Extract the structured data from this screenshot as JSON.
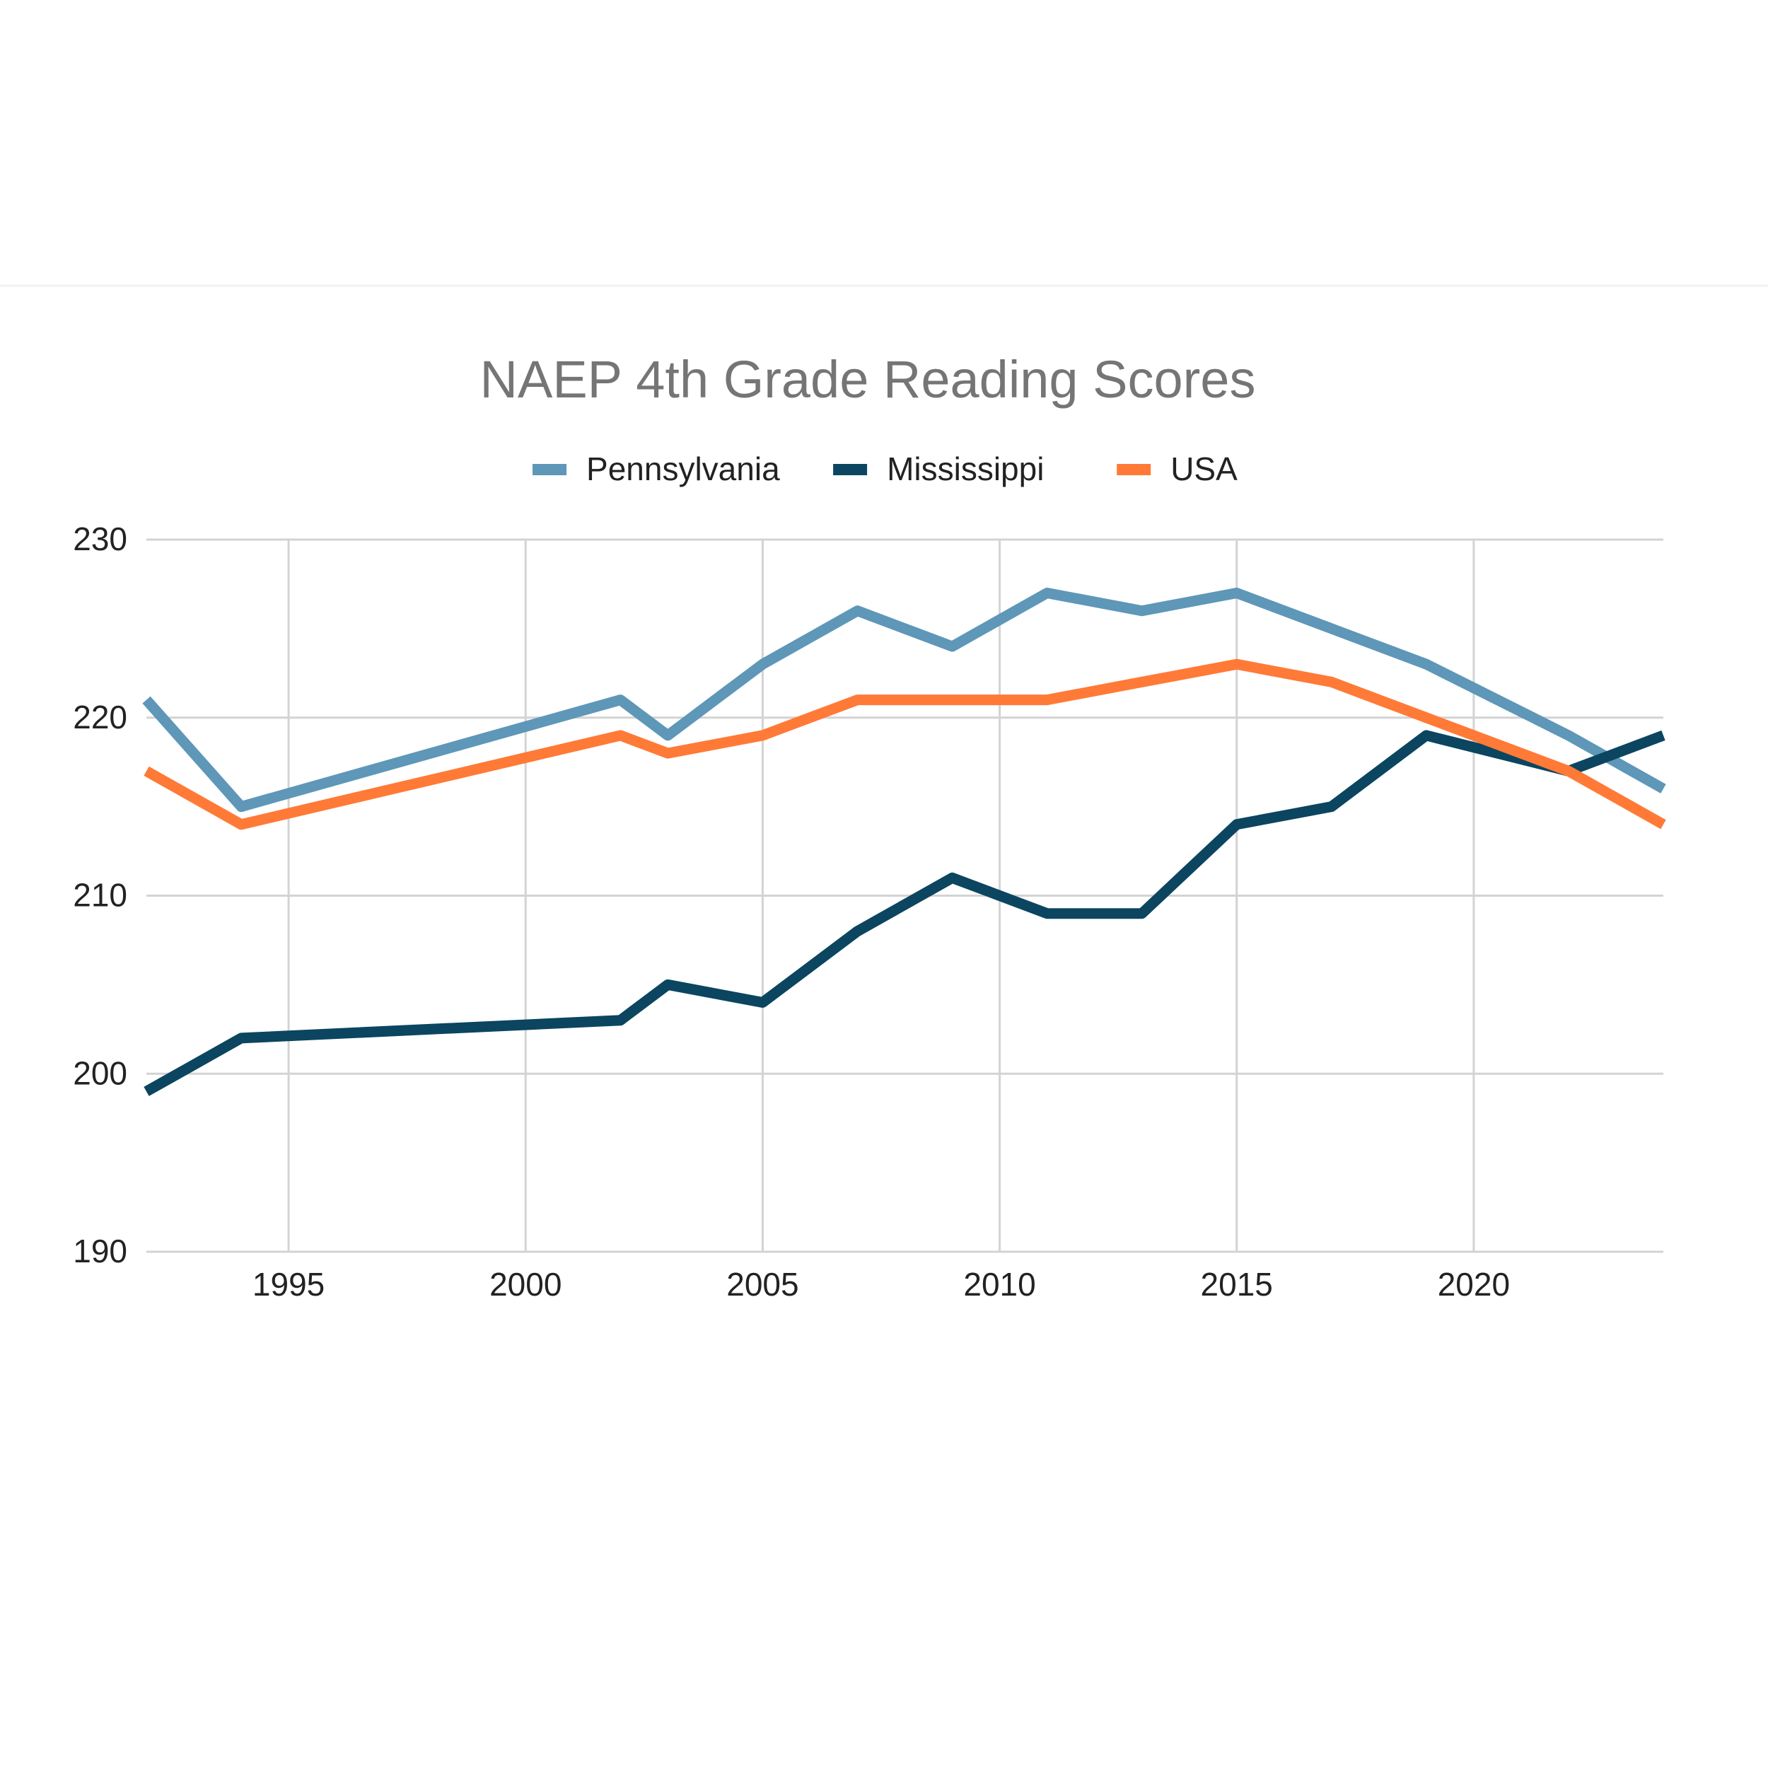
{
  "chart_data": {
    "type": "line",
    "title": "NAEP 4th Grade Reading Scores",
    "xlabel": "",
    "ylabel": "",
    "xlim": [
      1992,
      2024
    ],
    "ylim": [
      190,
      230
    ],
    "x_ticks": [
      1995,
      2000,
      2005,
      2010,
      2015,
      2020
    ],
    "y_ticks": [
      190,
      200,
      210,
      220,
      230
    ],
    "x_tick_labels": [
      "1995",
      "2000",
      "2005",
      "2010",
      "2015",
      "2020"
    ],
    "y_tick_labels": [
      "190",
      "200",
      "210",
      "220",
      "230"
    ],
    "grid": true,
    "legend_position": "top-center",
    "x": [
      1992,
      1994,
      2002,
      2003,
      2005,
      2007,
      2009,
      2011,
      2013,
      2015,
      2017,
      2019,
      2022,
      2024
    ],
    "series": [
      {
        "name": "Pennsylvania",
        "color": "#5e97b8",
        "values": [
          221,
          215,
          221,
          219,
          223,
          226,
          224,
          227,
          226,
          227,
          225,
          223,
          219,
          216
        ]
      },
      {
        "name": "Mississippi",
        "color": "#0b4560",
        "values": [
          199,
          202,
          203,
          205,
          204,
          208,
          211,
          209,
          209,
          214,
          215,
          219,
          217,
          219
        ]
      },
      {
        "name": "USA",
        "color": "#ff7a37",
        "values": [
          217,
          214,
          219,
          218,
          219,
          221,
          221,
          221,
          222,
          223,
          222,
          220,
          217,
          214
        ]
      }
    ]
  },
  "colors": {
    "title": "#757575",
    "ticks": "#222222",
    "legend_text": "#222222",
    "grid": "#d3d3d3",
    "separator": "#f2f2f2"
  }
}
